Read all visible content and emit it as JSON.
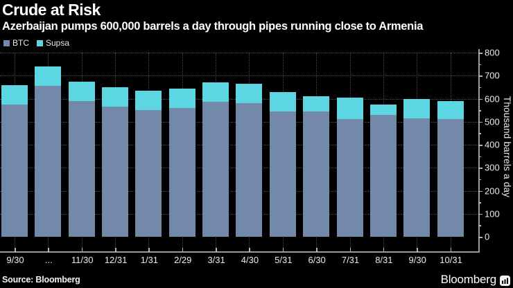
{
  "header": {
    "title": "Crude at Risk",
    "subtitle": "Azerbaijan pumps 600,000 barrels a day through pipes running close to Armenia"
  },
  "footer": {
    "source": "Source: Bloomberg",
    "brand": "Bloomberg"
  },
  "chart_data": {
    "type": "bar",
    "stacked": true,
    "title": "Crude at Risk",
    "subtitle": "Azerbaijan pumps 600,000 barrels a day through pipes running close to Armenia",
    "categories": [
      "9/30",
      "...",
      "11/30",
      "12/31",
      "1/31",
      "2/29",
      "3/31",
      "4/30",
      "5/31",
      "6/30",
      "7/31",
      "8/31",
      "9/30",
      "10/31"
    ],
    "series": [
      {
        "name": "BTC",
        "color": "#7289aa",
        "values": [
          575,
          655,
          590,
          565,
          550,
          560,
          585,
          580,
          545,
          545,
          510,
          530,
          515,
          510
        ]
      },
      {
        "name": "Supsa",
        "color": "#5bd6e2",
        "values": [
          85,
          85,
          85,
          85,
          85,
          85,
          85,
          85,
          85,
          65,
          95,
          45,
          85,
          80
        ]
      }
    ],
    "xlabel": "",
    "ylabel": "Thousand barrels a day",
    "ylim": [
      0,
      800
    ],
    "y_ticks": [
      0,
      100,
      200,
      300,
      400,
      500,
      600,
      700,
      800
    ],
    "grid": "dotted",
    "legend_position": "top-left",
    "colors": {
      "background": "#000000",
      "grid": "#505050",
      "axis": "#9a9a9a",
      "text": "#ececec"
    }
  }
}
